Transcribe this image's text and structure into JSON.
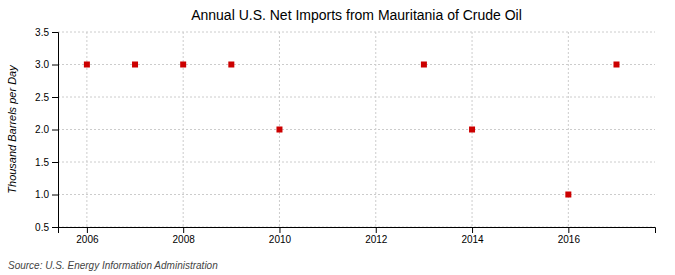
{
  "chart_data": {
    "type": "scatter",
    "title": "Annual U.S. Net Imports from Mauritania of Crude Oil",
    "ylabel": "Thousand Barrels per Day",
    "source": "Source: U.S. Energy Information Administration",
    "x": [
      2006,
      2007,
      2008,
      2009,
      2010,
      2013,
      2014,
      2016,
      2017
    ],
    "values": [
      3.0,
      3.0,
      3.0,
      3.0,
      2.0,
      3.0,
      2.0,
      1.0,
      3.0
    ],
    "color": "#cc0000",
    "marker": "square",
    "xlim": [
      2005.4,
      2017.8
    ],
    "ylim": [
      0.5,
      3.5
    ],
    "xticks": [
      2006,
      2008,
      2010,
      2012,
      2014,
      2016
    ],
    "yticks": [
      0.5,
      {
        "value": 1.0,
        "label": "1.0"
      },
      1.5,
      {
        "value": 2.0,
        "label": "2.0"
      },
      2.5,
      {
        "value": 3.0,
        "label": "3.0"
      },
      3.5
    ],
    "grid": true
  }
}
